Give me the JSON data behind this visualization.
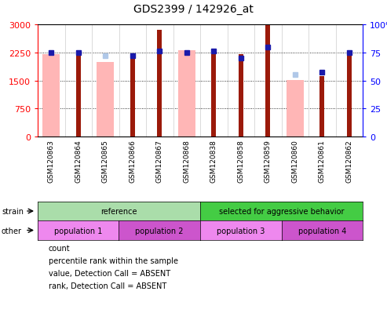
{
  "title": "GDS2399 / 142926_at",
  "samples": [
    "GSM120863",
    "GSM120864",
    "GSM120865",
    "GSM120866",
    "GSM120867",
    "GSM120868",
    "GSM120838",
    "GSM120858",
    "GSM120859",
    "GSM120860",
    "GSM120861",
    "GSM120862"
  ],
  "count_values": [
    0,
    2300,
    0,
    2200,
    2850,
    0,
    2350,
    2200,
    2980,
    0,
    1620,
    2200
  ],
  "absent_value_bars": [
    2200,
    0,
    2000,
    0,
    0,
    2300,
    0,
    0,
    0,
    1520,
    0,
    0
  ],
  "percentile_rank": [
    75,
    75,
    null,
    72,
    76,
    75,
    76,
    70,
    80,
    null,
    57,
    75
  ],
  "absent_rank": [
    null,
    null,
    72,
    null,
    null,
    null,
    null,
    null,
    null,
    55,
    null,
    null
  ],
  "ylim_left": [
    0,
    3000
  ],
  "ylim_right": [
    0,
    100
  ],
  "yticks_left": [
    0,
    750,
    1500,
    2250,
    3000
  ],
  "yticks_right": [
    0,
    25,
    50,
    75,
    100
  ],
  "color_count": "#9b1a0a",
  "color_rank": "#1a1aaa",
  "color_absent_value": "#ffb6b6",
  "color_absent_rank": "#b0c8e8",
  "strain_groups": [
    {
      "label": "reference",
      "start": 0,
      "end": 6,
      "color": "#aaddaa"
    },
    {
      "label": "selected for aggressive behavior",
      "start": 6,
      "end": 12,
      "color": "#44cc44"
    }
  ],
  "other_groups": [
    {
      "label": "population 1",
      "start": 0,
      "end": 3,
      "color": "#ee88ee"
    },
    {
      "label": "population 2",
      "start": 3,
      "end": 6,
      "color": "#cc55cc"
    },
    {
      "label": "population 3",
      "start": 6,
      "end": 9,
      "color": "#ee88ee"
    },
    {
      "label": "population 4",
      "start": 9,
      "end": 12,
      "color": "#cc55cc"
    }
  ],
  "legend_items": [
    {
      "label": "count",
      "color": "#9b1a0a"
    },
    {
      "label": "percentile rank within the sample",
      "color": "#1a1aaa"
    },
    {
      "label": "value, Detection Call = ABSENT",
      "color": "#ffb6b6"
    },
    {
      "label": "rank, Detection Call = ABSENT",
      "color": "#b0c8e8"
    }
  ],
  "figsize": [
    4.93,
    4.14
  ],
  "dpi": 100
}
